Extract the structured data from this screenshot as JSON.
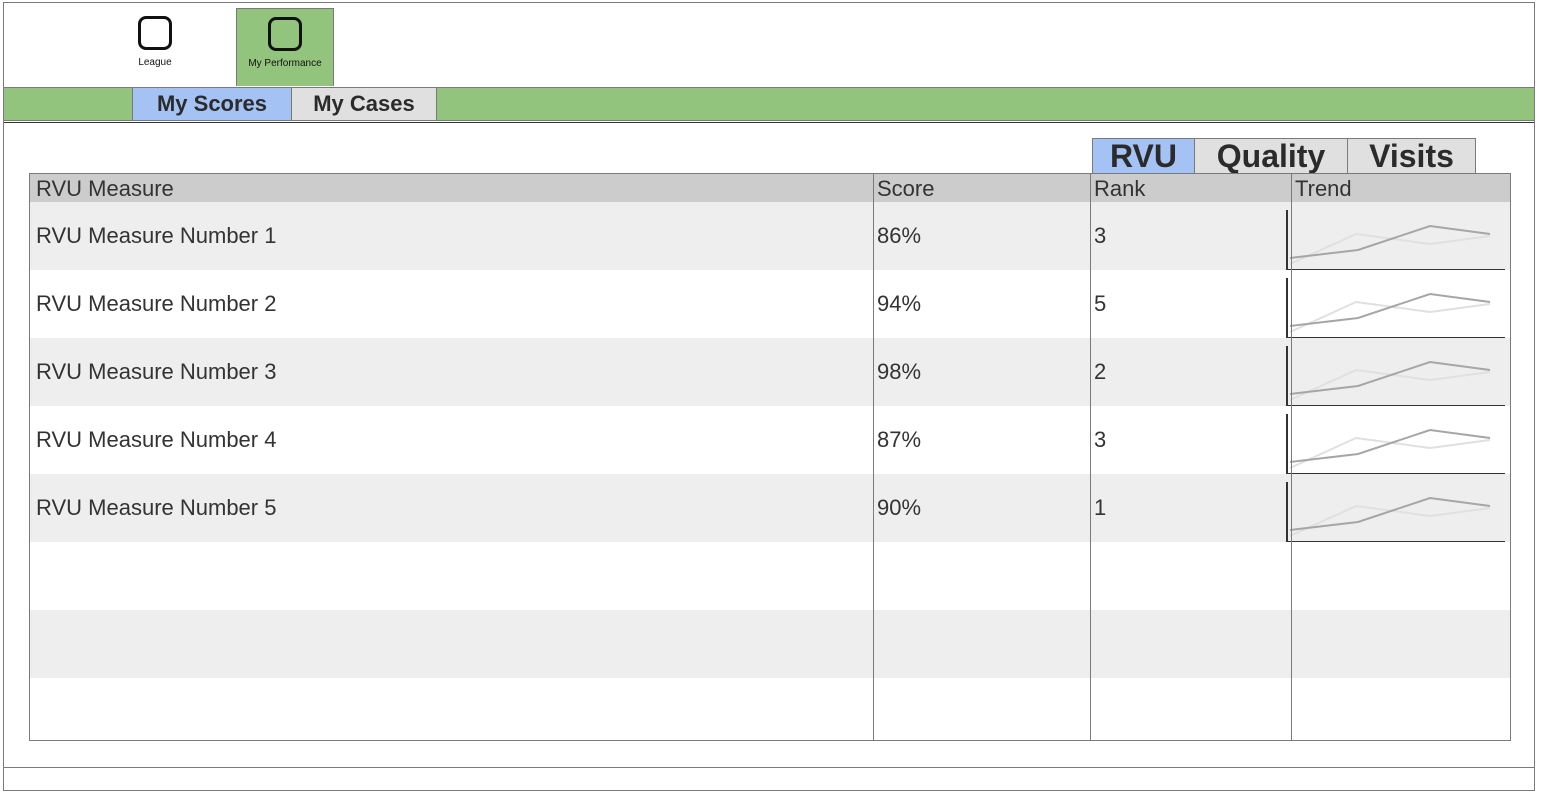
{
  "nav": {
    "items": [
      {
        "label": "League",
        "icon": "rounded-square-icon",
        "active": false
      },
      {
        "label": "My Performance",
        "icon": "rounded-square-icon",
        "active": true
      }
    ]
  },
  "subtabs": [
    {
      "label": "My Scores",
      "active": true
    },
    {
      "label": "My Cases",
      "active": false
    }
  ],
  "category_tabs": [
    {
      "label": "RVU",
      "active": true
    },
    {
      "label": "Quality",
      "active": false
    },
    {
      "label": "Visits",
      "active": false
    }
  ],
  "table": {
    "headers": {
      "measure": "RVU Measure",
      "score": "Score",
      "rank": "Rank",
      "trend": "Trend"
    },
    "rows": [
      {
        "measure": "RVU Measure Number 1",
        "score": "86%",
        "rank": "3"
      },
      {
        "measure": "RVU Measure Number 2",
        "score": "94%",
        "rank": "5"
      },
      {
        "measure": "RVU Measure Number 3",
        "score": "98%",
        "rank": "2"
      },
      {
        "measure": "RVU Measure Number 4",
        "score": "87%",
        "rank": "3"
      },
      {
        "measure": "RVU Measure Number 5",
        "score": "90%",
        "rank": "1"
      }
    ],
    "empty_rows": 3
  },
  "colors": {
    "nav_green": "#93c47d",
    "active_tab_blue": "#a4c2f4",
    "inactive_tab_gray": "#e0e0e0",
    "header_gray": "#cccccc",
    "row_shade": "#eeeeee"
  }
}
